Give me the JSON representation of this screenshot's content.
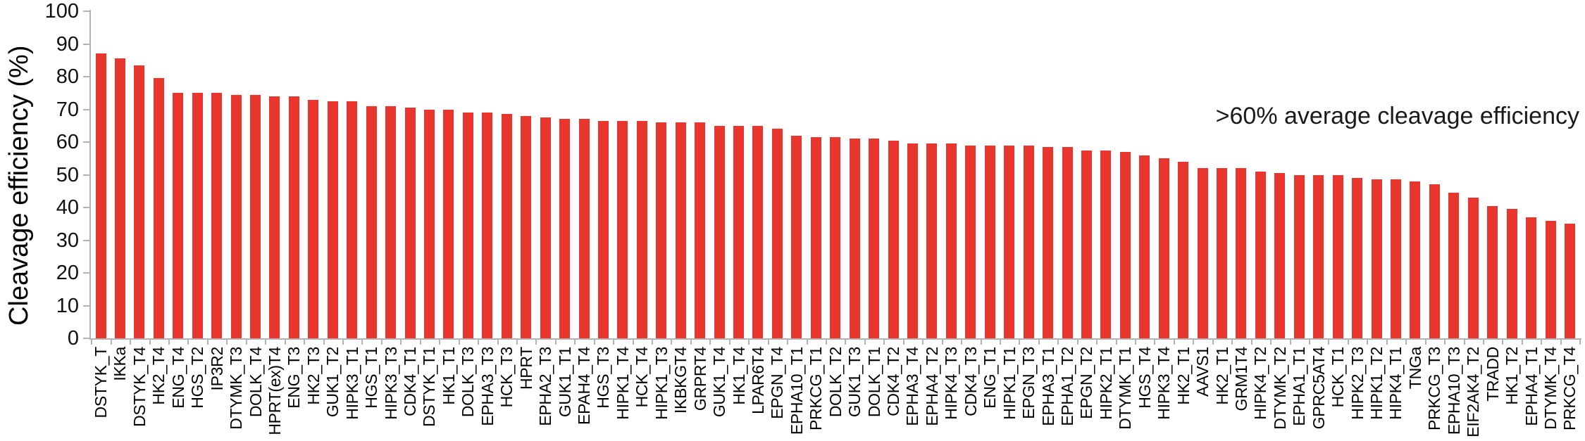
{
  "chart_data": {
    "type": "bar",
    "title": "",
    "xlabel": "",
    "ylabel": "Cleavage efficiency (%)",
    "ylim": [
      0,
      100
    ],
    "yticks": [
      0,
      10,
      20,
      30,
      40,
      50,
      60,
      70,
      80,
      90,
      100
    ],
    "grid": false,
    "legend": "none",
    "annotation": ">60% average cleavage efficiency",
    "bar_color": "#e8352e",
    "axis_color": "#b3b3b3",
    "categories": [
      "DSTYK_T",
      "IKKa",
      "DSTYK_T4",
      "HK2_T4",
      "ENG_T4",
      "HGS_T2",
      "IP3R2",
      "DTYMK_T3",
      "DOLK_T4",
      "HPRT(ex)T4",
      "ENG_T3",
      "HK2_T3",
      "GUK1_T2",
      "HIPK3_T1",
      "HGS_T1",
      "HIPK3_T3",
      "CDK4_T1",
      "DSTYK_T1",
      "HK1_T1",
      "DOLK_T3",
      "EPHA3_T3",
      "HCK_T3",
      "HPRT",
      "EPHA2_T3",
      "GUK1_T1",
      "EPAH4_T4",
      "HGS_T3",
      "HIPK1_T4",
      "HCK_T4",
      "HIPK1_T3",
      "IKBKGT4",
      "GRPRT4",
      "GUK1_T4",
      "HK1_T4",
      "LPAR6T4",
      "EPGN_T4",
      "EPHA10_T1",
      "PRKCG_T1",
      "DOLK_T2",
      "GUK1_T3",
      "DOLK_T1",
      "CDK4_T2",
      "EPHA3_T4",
      "EPHA4_T2",
      "HIPK4_T3",
      "CDK4_T3",
      "ENG_T1",
      "HIPK1_T1",
      "EPGN_T3",
      "EPHA3_T1",
      "EPHA1_T2",
      "EPGN_T2",
      "HIPK2_T1",
      "DTYMK_T1",
      "HGS_T4",
      "HIPK3_T4",
      "HK2_T1",
      "AAVS1",
      "HK2_T1",
      "GRM1T4",
      "HIPK4_T2",
      "DTYMK_T2",
      "EPHA1_T1",
      "GPRC5AT4",
      "HCK_T1",
      "HIPK2_T3",
      "HIPK1_T2",
      "HIPK4_T1",
      "TNGa",
      "PRKCG_T3",
      "EPHA10_T3",
      "EIF2AK4_T2",
      "TRADD",
      "HK1_T2",
      "EPHA4_T1",
      "DTYMK_T4",
      "PRKCG_T4"
    ],
    "values": [
      87,
      85.5,
      83.5,
      79.5,
      75,
      75,
      75,
      74.5,
      74.5,
      74,
      74,
      73,
      72.5,
      72.5,
      71,
      71,
      70.5,
      70,
      70,
      69,
      69,
      68.5,
      68,
      67.5,
      67,
      67,
      66.5,
      66.5,
      66.5,
      66,
      66,
      66,
      65,
      65,
      65,
      64,
      62,
      61.5,
      61.5,
      61,
      61,
      60.5,
      59.5,
      59.5,
      59.5,
      59,
      59,
      59,
      59,
      58.5,
      58.5,
      57.5,
      57.5,
      57,
      56,
      55,
      54,
      52,
      52,
      52,
      51,
      50.5,
      50,
      50,
      50,
      49,
      48.5,
      48.5,
      48,
      47,
      44.5,
      43,
      40.5,
      39.5,
      37,
      36,
      35
    ]
  }
}
